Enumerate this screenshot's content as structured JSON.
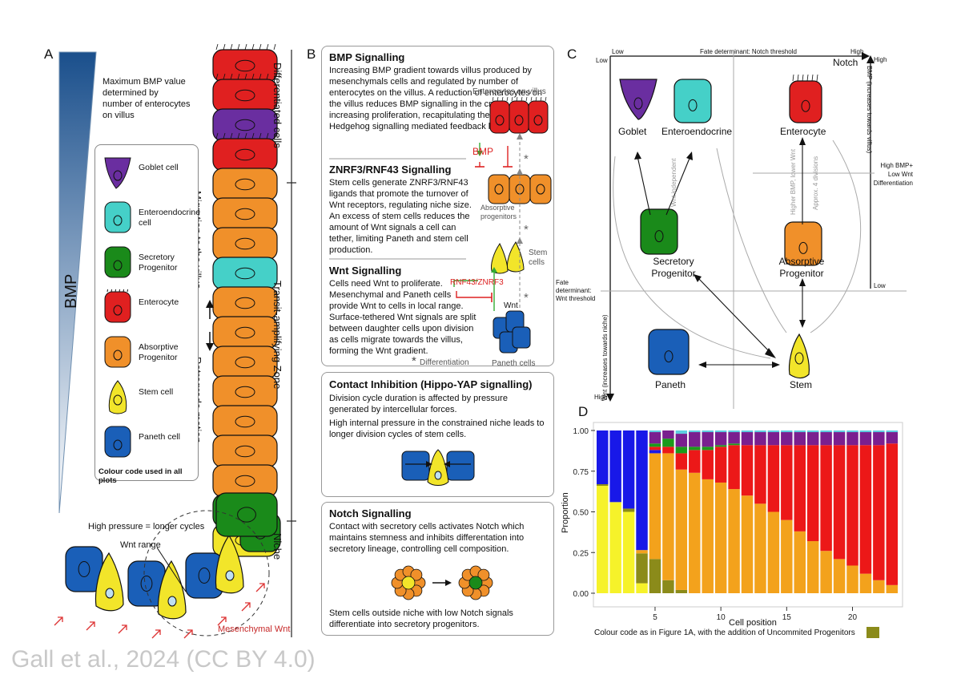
{
  "panels": {
    "a": "A",
    "b": "B",
    "c": "C",
    "d": "D"
  },
  "panel_a": {
    "bmp_label": "BMP",
    "bmp_note": [
      "Maximum BMP value",
      "determined by",
      "number of enterocytes",
      "on villus"
    ],
    "zones": {
      "differentiated": "Differentiated cells",
      "transit": "Transit-amplifying Zone",
      "niche": "Niche"
    },
    "migration": "Migration to the villus",
    "retrograde": "Retrograde motion",
    "pressure": "High pressure = longer cycles",
    "wnt_range": "Wnt range",
    "mesenchymal": "Mesenchymal Wnt",
    "legend": {
      "items": [
        {
          "label": "Goblet cell",
          "color": "#6a2ea0"
        },
        {
          "label": "Enteroendocrine cell",
          "color": "#45d0c8"
        },
        {
          "label": "Secretory Progenitor",
          "color": "#1a8a1a"
        },
        {
          "label": "Enterocyte",
          "color": "#e02020"
        },
        {
          "label": "Absorptive Progenitor",
          "color": "#f0902a"
        },
        {
          "label": "Stem cell",
          "color": "#f2e52a"
        },
        {
          "label": "Paneth cell",
          "color": "#1a5fb8"
        }
      ],
      "caption": "Colour code used in all plots"
    }
  },
  "panel_b": {
    "bmp": {
      "title": "BMP Signalling",
      "text": "Increasing BMP gradient towards villus produced by mesenchymals cells and regulated by number of enterocytes on the villus. A reduction of enterocytes on the villus reduces BMP signalling in the crypt, increasing proliferation, recapitulating the Indian Hedgehog signalling mediated feedback loop."
    },
    "znrf": {
      "title": "ZNRF3/RNF43 Signalling",
      "text": "Stem cells generate ZNRF3/RNF43 ligands that promote the turnover of Wnt receptors, regulating niche size. An excess of stem cells reduces the amount of Wnt signals a cell can tether, limiting Paneth and stem cell production."
    },
    "wnt": {
      "title": "Wnt Signalling",
      "text": "Cells need Wnt to proliferate. Mesenchymal and Paneth cells provide Wnt to cells in local range. Surface-tethered Wnt signals are split between daughter cells upon division as cells migrate towards the villus, forming the Wnt gradient."
    },
    "fig": {
      "enterocytes": "Enterocytes on villus",
      "bmp": "BMP",
      "absorptive": "Absorptive progenitors",
      "stem": "Stem cells",
      "rnf": "RNF43/ZNRF3",
      "wnt": "Wnt",
      "paneth": "Paneth cells",
      "diff": "Differentiation",
      "star": "*"
    },
    "contact": {
      "title": "Contact Inhibition (Hippo-YAP signalling)",
      "text1": "Division cycle duration is affected by pressure generated by intercellular forces.",
      "text2": "High internal pressure in the constrained niche leads to longer division cycles of stem cells."
    },
    "notch": {
      "title": "Notch Signalling",
      "text1": "Contact with secretory cells activates Notch which maintains stemness and inhibits differentation into secretory lineage, controlling cell composition.",
      "text2": "Stem cells outside niche with low Notch signals differentiate into secretory progenitors."
    }
  },
  "panel_c": {
    "top_low": "Low",
    "top_high": "High",
    "axis_title": "Fate determinant: Notch threshold",
    "notch": "Notch",
    "left_low": "Low",
    "left_high": "High",
    "wnt_axis": "Wnt (increases towards niche)",
    "bmp_axis": "BMP (increases towards villus)",
    "bmp_high": "High",
    "bmp_low": "Low",
    "wnt_threshold": "Fate determinant: Wnt threshold",
    "bmp_note": [
      "High BMP+",
      "Low Wnt",
      "Differentiation"
    ],
    "wnt_indep": "Wnt independent",
    "higher_bmp": "Higher BMP, lower Wnt",
    "approx": "Approx. 4 divisions",
    "nodes": {
      "goblet": "Goblet",
      "entero": "Enteroendocrine",
      "enterocyte": "Enterocyte",
      "secretory": [
        "Secretory",
        "Progenitor"
      ],
      "absorptive": [
        "Absorptive",
        "Progenitor"
      ],
      "paneth": "Paneth",
      "stem": "Stem"
    }
  },
  "chart_data": {
    "type": "bar",
    "stacked": true,
    "xlabel": "Cell position",
    "ylabel": "Proportion",
    "ylim": [
      0,
      1
    ],
    "yticks": [
      "0.00",
      "0.25",
      "0.50",
      "0.75",
      "1.00"
    ],
    "xticks": [
      "5",
      "10",
      "15",
      "20"
    ],
    "caption": "Colour code as in Figure 1A, with the addition of Uncommited Progenitors",
    "categories": [
      1,
      2,
      3,
      4,
      5,
      6,
      7,
      8,
      9,
      10,
      11,
      12,
      13,
      14,
      15,
      16,
      17,
      18,
      19,
      20,
      21,
      22,
      23
    ],
    "series": [
      {
        "name": "Stem cell",
        "color": "#f6f22a",
        "values": [
          0.66,
          0.56,
          0.5,
          0.06,
          0.0,
          0,
          0,
          0,
          0,
          0,
          0,
          0,
          0,
          0,
          0,
          0,
          0,
          0,
          0,
          0,
          0,
          0,
          0
        ]
      },
      {
        "name": "Uncommited Progenitors",
        "color": "#8b8b1a",
        "values": [
          0.01,
          0.0,
          0.02,
          0.18,
          0.21,
          0.08,
          0.02,
          0,
          0,
          0,
          0,
          0,
          0,
          0,
          0,
          0,
          0,
          0,
          0,
          0,
          0,
          0,
          0
        ]
      },
      {
        "name": "Absorptive Progenitor",
        "color": "#f3a21c",
        "values": [
          0,
          0,
          0,
          0.02,
          0.65,
          0.78,
          0.74,
          0.74,
          0.7,
          0.68,
          0.64,
          0.6,
          0.55,
          0.5,
          0.45,
          0.38,
          0.32,
          0.26,
          0.21,
          0.17,
          0.12,
          0.08,
          0.05
        ]
      },
      {
        "name": "Paneth cell",
        "color": "#1818e8",
        "values": [
          0.33,
          0.44,
          0.48,
          0.72,
          0.02,
          0,
          0,
          0,
          0,
          0,
          0,
          0,
          0,
          0,
          0,
          0,
          0,
          0,
          0,
          0,
          0,
          0,
          0
        ]
      },
      {
        "name": "Enterocyte",
        "color": "#ec1818",
        "values": [
          0,
          0,
          0,
          0,
          0.02,
          0.04,
          0.1,
          0.14,
          0.18,
          0.22,
          0.27,
          0.31,
          0.36,
          0.41,
          0.46,
          0.53,
          0.59,
          0.65,
          0.7,
          0.74,
          0.79,
          0.83,
          0.87
        ]
      },
      {
        "name": "Secretory Progenitor",
        "color": "#1b9a1b",
        "values": [
          0,
          0,
          0,
          0,
          0.02,
          0.05,
          0.04,
          0.02,
          0.02,
          0.01,
          0.01,
          0,
          0,
          0,
          0,
          0,
          0,
          0,
          0,
          0,
          0,
          0,
          0
        ]
      },
      {
        "name": "Goblet cell",
        "color": "#7a1f8f",
        "values": [
          0,
          0,
          0,
          0,
          0.07,
          0.05,
          0.08,
          0.09,
          0.09,
          0.08,
          0.07,
          0.08,
          0.08,
          0.08,
          0.08,
          0.08,
          0.08,
          0.08,
          0.08,
          0.08,
          0.08,
          0.08,
          0.07
        ]
      },
      {
        "name": "Enteroendocrine cell",
        "color": "#5ecde0",
        "values": [
          0,
          0,
          0,
          0,
          0.01,
          0,
          0.02,
          0.01,
          0.01,
          0.01,
          0.01,
          0.01,
          0.01,
          0.01,
          0.01,
          0.01,
          0.01,
          0.01,
          0.01,
          0.01,
          0.01,
          0.01,
          0.01
        ]
      }
    ]
  },
  "credit": "Gall et al., 2024 (CC BY 4.0)"
}
